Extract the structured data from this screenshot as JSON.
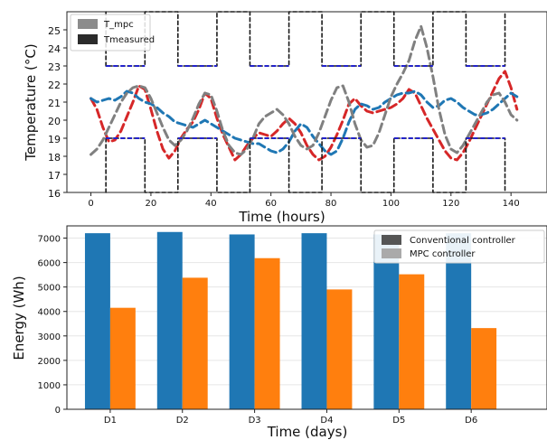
{
  "chart_data": [
    {
      "type": "line",
      "xlabel": "Time (hours)",
      "ylabel": "Temperature (°C)",
      "xlim": [
        -8,
        152
      ],
      "ylim": [
        16,
        26
      ],
      "xticks": [
        0,
        20,
        40,
        60,
        80,
        100,
        120,
        140
      ],
      "yticks": [
        16,
        17,
        18,
        19,
        20,
        21,
        22,
        23,
        24,
        25
      ],
      "legend": {
        "placement": "top-left",
        "entries": [
          "T_mpc",
          "Tmeasured"
        ]
      },
      "series": [
        {
          "name": "T_mpc",
          "style": "dashed",
          "color": "#d62728",
          "x": [
            0,
            2,
            4,
            6,
            8,
            10,
            12,
            14,
            16,
            18,
            20,
            22,
            24,
            26,
            28,
            30,
            32,
            34,
            36,
            38,
            40,
            42,
            44,
            46,
            48,
            50,
            52,
            54,
            56,
            58,
            60,
            62,
            64,
            66,
            68,
            70,
            72,
            74,
            76,
            78,
            80,
            82,
            84,
            86,
            88,
            90,
            92,
            94,
            96,
            98,
            100,
            102,
            104,
            106,
            108,
            110,
            112,
            114,
            116,
            118,
            120,
            122,
            124,
            126,
            128,
            130,
            132,
            134,
            136,
            138,
            140,
            142
          ],
          "y": [
            21.2,
            20.6,
            19.6,
            18.8,
            18.9,
            19.4,
            20.2,
            21.0,
            21.9,
            21.7,
            20.6,
            19.4,
            18.4,
            17.9,
            18.3,
            19.0,
            19.5,
            19.9,
            20.6,
            21.5,
            21.2,
            20.1,
            19.2,
            18.5,
            17.8,
            18.1,
            18.6,
            19.0,
            19.3,
            19.2,
            19.1,
            19.4,
            19.8,
            20.1,
            19.8,
            19.3,
            18.6,
            18.1,
            17.8,
            18.0,
            18.5,
            19.2,
            20.0,
            20.9,
            21.2,
            20.8,
            20.5,
            20.4,
            20.5,
            20.6,
            20.7,
            20.9,
            21.2,
            21.7,
            21.5,
            20.8,
            20.1,
            19.5,
            18.9,
            18.3,
            17.9,
            17.8,
            18.2,
            18.8,
            19.5,
            20.2,
            20.9,
            21.6,
            22.3,
            22.7,
            21.8,
            20.6
          ]
        },
        {
          "name": "",
          "style": "dashed",
          "color": "#1f77b4",
          "x": [
            0,
            2,
            4,
            6,
            8,
            10,
            12,
            14,
            16,
            18,
            20,
            22,
            24,
            26,
            28,
            30,
            32,
            34,
            36,
            38,
            40,
            42,
            44,
            46,
            48,
            50,
            52,
            54,
            56,
            58,
            60,
            62,
            64,
            66,
            68,
            70,
            72,
            74,
            76,
            78,
            80,
            82,
            84,
            86,
            88,
            90,
            92,
            94,
            96,
            98,
            100,
            102,
            104,
            106,
            108,
            110,
            112,
            114,
            116,
            118,
            120,
            122,
            124,
            126,
            128,
            130,
            132,
            134,
            136,
            138,
            140,
            142
          ],
          "y": [
            21.2,
            21.0,
            21.1,
            21.2,
            21.1,
            21.3,
            21.6,
            21.5,
            21.2,
            21.0,
            20.9,
            20.7,
            20.4,
            20.2,
            19.9,
            19.8,
            19.7,
            19.6,
            19.8,
            20.0,
            19.8,
            19.6,
            19.4,
            19.2,
            19.0,
            18.9,
            18.8,
            18.7,
            18.7,
            18.5,
            18.3,
            18.2,
            18.4,
            18.8,
            19.4,
            19.8,
            19.6,
            19.1,
            18.7,
            18.3,
            18.1,
            18.3,
            19.0,
            19.9,
            20.6,
            20.9,
            20.8,
            20.6,
            20.7,
            21.0,
            21.2,
            21.4,
            21.5,
            21.5,
            21.6,
            21.4,
            21.0,
            20.7,
            20.8,
            21.1,
            21.2,
            21.0,
            20.7,
            20.5,
            20.3,
            20.3,
            20.4,
            20.6,
            20.9,
            21.2,
            21.5,
            21.3
          ]
        },
        {
          "name": "",
          "style": "dashed",
          "color": "#808080",
          "x": [
            0,
            2,
            4,
            6,
            8,
            10,
            12,
            14,
            16,
            18,
            20,
            22,
            24,
            26,
            28,
            30,
            32,
            34,
            36,
            38,
            40,
            42,
            44,
            46,
            48,
            50,
            52,
            54,
            56,
            58,
            60,
            62,
            64,
            66,
            68,
            70,
            72,
            74,
            76,
            78,
            80,
            82,
            84,
            86,
            88,
            90,
            92,
            94,
            96,
            98,
            100,
            102,
            104,
            106,
            108,
            110,
            112,
            114,
            116,
            118,
            120,
            122,
            124,
            126,
            128,
            130,
            132,
            134,
            136,
            138,
            140,
            142
          ],
          "y": [
            18.1,
            18.4,
            18.9,
            19.6,
            20.3,
            21.0,
            21.5,
            21.8,
            21.9,
            21.8,
            21.2,
            20.4,
            19.6,
            18.9,
            18.6,
            18.9,
            19.4,
            20.1,
            20.9,
            21.5,
            21.4,
            20.5,
            19.4,
            18.6,
            18.2,
            18.1,
            18.4,
            19.0,
            19.8,
            20.2,
            20.4,
            20.6,
            20.3,
            19.8,
            19.1,
            18.6,
            18.4,
            18.6,
            19.3,
            20.2,
            21.1,
            21.8,
            21.9,
            21.0,
            19.8,
            18.9,
            18.5,
            18.6,
            19.3,
            20.3,
            21.3,
            22.0,
            22.6,
            23.3,
            24.4,
            25.2,
            24.0,
            22.4,
            20.6,
            19.2,
            18.4,
            18.2,
            18.6,
            19.2,
            19.8,
            20.4,
            21.0,
            21.4,
            21.5,
            21.0,
            20.3,
            20.0
          ]
        },
        {
          "name": "Tmeasured",
          "style": "dashed-step",
          "color": "#1a1a1a",
          "x": [
            5,
            5,
            18,
            18,
            29,
            29,
            42,
            42,
            53,
            53,
            66,
            66,
            77,
            77,
            90,
            90,
            101,
            101,
            114,
            114,
            125,
            125,
            138,
            138
          ],
          "y": [
            16,
            19,
            19,
            16,
            16,
            19,
            19,
            16,
            16,
            19,
            19,
            16,
            16,
            19,
            19,
            16,
            16,
            19,
            19,
            16,
            16,
            19,
            19,
            16
          ]
        },
        {
          "name": "",
          "style": "dashed-step",
          "color": "#1a1a1a",
          "x": [
            5,
            5,
            18,
            18,
            29,
            29,
            42,
            42,
            53,
            53,
            66,
            66,
            77,
            77,
            90,
            90,
            101,
            101,
            114,
            114,
            125,
            125,
            138,
            138
          ],
          "y": [
            26,
            23,
            23,
            26,
            26,
            23,
            23,
            26,
            26,
            23,
            23,
            26,
            26,
            23,
            23,
            26,
            26,
            23,
            23,
            26,
            26,
            23,
            23,
            26
          ]
        },
        {
          "name": "",
          "style": "dashed-step",
          "color": "#2222cc",
          "x": [
            5,
            18,
            29,
            42,
            53,
            66,
            77,
            90,
            101,
            114,
            125,
            138
          ],
          "y_lower": 19,
          "y_upper": 23
        }
      ]
    },
    {
      "type": "bar",
      "xlabel": "Time (days)",
      "ylabel": "Energy (Wh)",
      "categories": [
        "D1",
        "D2",
        "D3",
        "D4",
        "D5",
        "D6"
      ],
      "ylim": [
        0,
        7500
      ],
      "yticks": [
        0,
        1000,
        2000,
        3000,
        4000,
        5000,
        6000,
        7000
      ],
      "legend": {
        "placement": "top-right",
        "entries": [
          "Conventional controller",
          "MPC controller"
        ]
      },
      "series": [
        {
          "name": "Conventional controller",
          "color": "#1f77b4",
          "values": [
            7200,
            7250,
            7150,
            7200,
            7150,
            7200
          ]
        },
        {
          "name": "MPC controller",
          "color": "#ff7f0e",
          "values": [
            4150,
            5380,
            6180,
            4900,
            5520,
            3320
          ]
        }
      ]
    }
  ]
}
